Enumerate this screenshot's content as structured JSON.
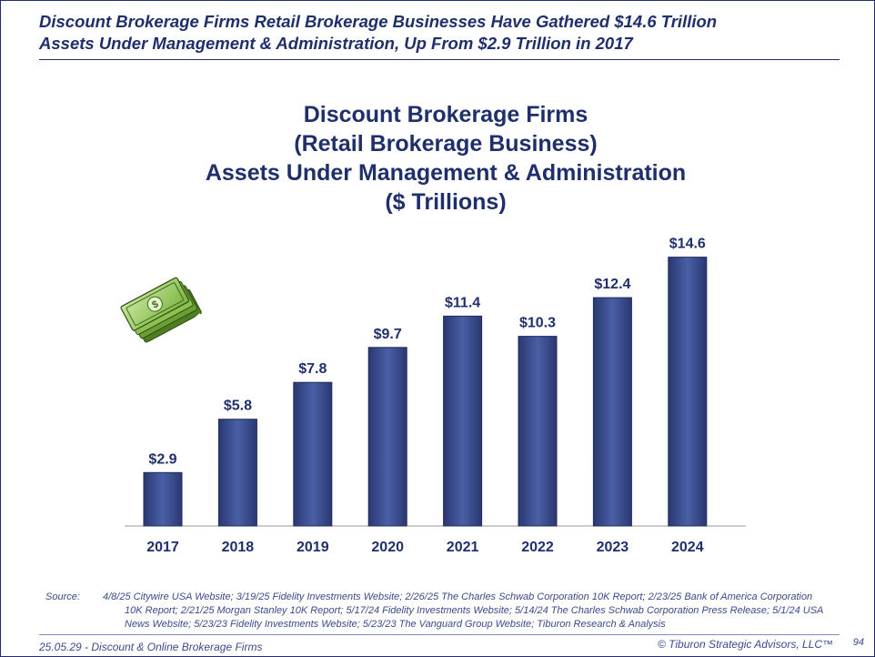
{
  "headline": {
    "line1": "Discount Brokerage Firms Retail Brokerage Businesses Have Gathered $14.6 Trillion",
    "line2": "Assets Under Management & Administration, Up From $2.9 Trillion in 2017"
  },
  "chart_data": {
    "type": "bar",
    "title_lines": [
      "Discount Brokerage Firms",
      "(Retail Brokerage Business)",
      "Assets Under Management & Administration",
      "($ Trillions)"
    ],
    "categories": [
      "2017",
      "2018",
      "2019",
      "2020",
      "2021",
      "2022",
      "2023",
      "2024"
    ],
    "values": [
      2.9,
      5.8,
      7.8,
      9.7,
      11.4,
      10.3,
      12.4,
      14.6
    ],
    "data_labels": [
      "$2.9",
      "$5.8",
      "$7.8",
      "$9.7",
      "$11.4",
      "$10.3",
      "$12.4",
      "$14.6"
    ],
    "xlabel": "",
    "ylabel": "",
    "ylim": [
      0,
      15
    ],
    "grid": false,
    "bar_color_top": "#2e3e78",
    "bar_color_mid": "#4a5fa6",
    "axis_color": "#999999",
    "decoration_icon": "money-stack-icon"
  },
  "source": {
    "label": "Source:",
    "text": "4/8/25 Citywire USA Website; 3/19/25 Fidelity Investments Website; 2/26/25 The Charles Schwab Corporation 10K Report; 2/23/25 Bank of America Corporation 10K Report; 2/21/25 Morgan Stanley 10K Report;  5/17/24 Fidelity Investments Website; 5/14/24 The Charles Schwab Corporation Press Release; 5/1/24 USA News Website; 5/23/23 Fidelity Investments Website; 5/23/23 The Vanguard Group Website; Tiburon Research & Analysis"
  },
  "footer": {
    "left": "25.05.29 - Discount & Online Brokerage Firms",
    "right": "© Tiburon Strategic Advisors, LLC™",
    "page": "94"
  },
  "colors": {
    "navy": "#1f2f6b",
    "accent_text": "#3b4a8c"
  }
}
